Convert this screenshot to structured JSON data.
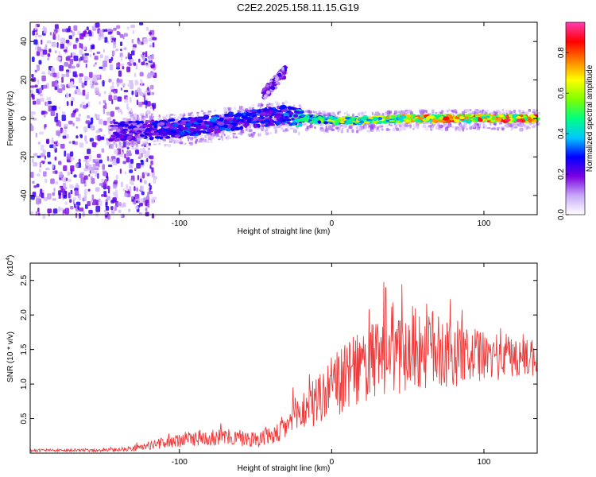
{
  "title": "C2E2.2025.158.11.15.G19",
  "chart_data": [
    {
      "type": "heatmap",
      "xlabel": "Height of straight line (km)",
      "ylabel": "Frequency (Hz)",
      "xlim": [
        -198,
        135
      ],
      "ylim": [
        -50,
        50
      ],
      "xticks": [
        -100,
        0,
        100
      ],
      "yticks": [
        -40,
        -20,
        0,
        20,
        40
      ],
      "colorbar": {
        "label": "Normalized spectral amplitude",
        "range": [
          0,
          0.95
        ],
        "ticks": [
          0.0,
          0.2,
          0.4,
          0.6,
          0.8
        ],
        "colors": [
          "#ffffff",
          "#c8a8f8",
          "#7a00e0",
          "#0000ff",
          "#00c8ff",
          "#00ff80",
          "#80ff00",
          "#ffff00",
          "#ff8000",
          "#ff0000",
          "#ff3cb4"
        ]
      },
      "ridge": [
        {
          "x": -198,
          "y": -5,
          "amp": 0.22
        },
        {
          "x": -150,
          "y": -7,
          "amp": 0.25
        },
        {
          "x": -120,
          "y": -6,
          "amp": 0.28
        },
        {
          "x": -100,
          "y": -5,
          "amp": 0.32
        },
        {
          "x": -80,
          "y": -3,
          "amp": 0.34
        },
        {
          "x": -60,
          "y": -1,
          "amp": 0.32
        },
        {
          "x": -40,
          "y": 1,
          "amp": 0.3
        },
        {
          "x": -30,
          "y": 2,
          "amp": 0.35
        },
        {
          "x": -20,
          "y": 0,
          "amp": 0.55
        },
        {
          "x": 0,
          "y": -1,
          "amp": 0.65
        },
        {
          "x": 20,
          "y": -1,
          "amp": 0.7
        },
        {
          "x": 50,
          "y": 0,
          "amp": 0.75
        },
        {
          "x": 80,
          "y": 0,
          "amp": 0.85
        },
        {
          "x": 110,
          "y": 0,
          "amp": 0.88
        },
        {
          "x": 135,
          "y": 0,
          "amp": 0.88
        }
      ],
      "spur": [
        {
          "x": -45,
          "y": 12
        },
        {
          "x": -30,
          "y": 25
        }
      ],
      "noise_band": {
        "x": [
          -198,
          -125
        ],
        "y": [
          -50,
          50
        ]
      }
    },
    {
      "type": "line",
      "xlabel": "Height of straight line (km)",
      "ylabel": "SNR (10 * v/v)",
      "y_multiplier": "(x10",
      "y_multiplier_exp": "4",
      "y_multiplier_close": ")",
      "xlim": [
        -198,
        135
      ],
      "ylim": [
        0.0,
        2.75
      ],
      "xticks": [
        -100,
        0,
        100
      ],
      "yticks": [
        0.5,
        1.0,
        1.5,
        2.0,
        2.5
      ],
      "color": "#f03c3c",
      "envelope": [
        {
          "x": -198,
          "mean": 0.04,
          "spread": 0.02
        },
        {
          "x": -150,
          "mean": 0.04,
          "spread": 0.02
        },
        {
          "x": -130,
          "mean": 0.07,
          "spread": 0.04
        },
        {
          "x": -110,
          "mean": 0.15,
          "spread": 0.08
        },
        {
          "x": -90,
          "mean": 0.22,
          "spread": 0.12
        },
        {
          "x": -70,
          "mean": 0.23,
          "spread": 0.12
        },
        {
          "x": -50,
          "mean": 0.2,
          "spread": 0.12
        },
        {
          "x": -35,
          "mean": 0.28,
          "spread": 0.15
        },
        {
          "x": -20,
          "mean": 0.6,
          "spread": 0.3
        },
        {
          "x": -10,
          "mean": 0.75,
          "spread": 0.4
        },
        {
          "x": 0,
          "mean": 0.95,
          "spread": 0.45
        },
        {
          "x": 20,
          "mean": 1.25,
          "spread": 0.55
        },
        {
          "x": 40,
          "mean": 1.45,
          "spread": 0.65
        },
        {
          "x": 60,
          "mean": 1.55,
          "spread": 0.65
        },
        {
          "x": 80,
          "mean": 1.45,
          "spread": 0.5
        },
        {
          "x": 100,
          "mean": 1.4,
          "spread": 0.35
        },
        {
          "x": 120,
          "mean": 1.4,
          "spread": 0.35
        },
        {
          "x": 135,
          "mean": 1.4,
          "spread": 0.3
        }
      ]
    }
  ]
}
